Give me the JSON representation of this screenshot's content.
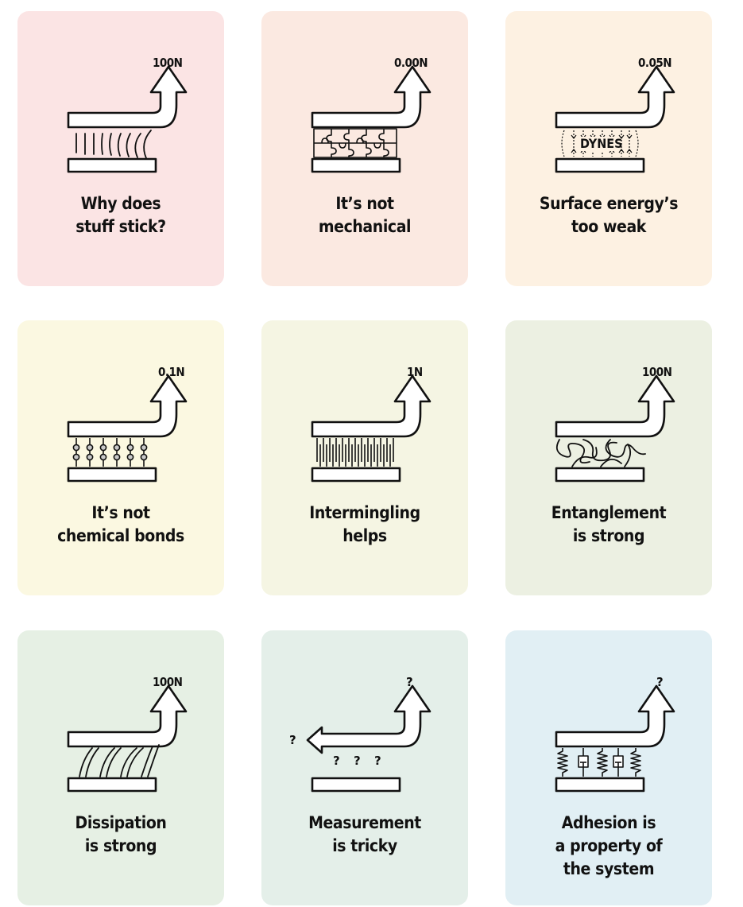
{
  "colors": {
    "card1": "#fbe4e4",
    "card2": "#fbe9e1",
    "card3": "#fdf1e2",
    "card4": "#fbf8e1",
    "card5": "#f5f5e3",
    "card6": "#ecf0e2",
    "card7": "#e6f0e4",
    "card8": "#e4efe9",
    "card9": "#e1eff4",
    "ink": "#111111"
  },
  "cards": [
    {
      "force": "100N",
      "caption": [
        "Why does",
        "stuff stick?"
      ]
    },
    {
      "force": "0.00N",
      "caption": [
        "It’s not",
        "mechanical"
      ]
    },
    {
      "force": "0.05N",
      "caption": [
        "Surface energy’s",
        "too weak"
      ],
      "inner_label": "DYNES"
    },
    {
      "force": "0.1N",
      "caption": [
        "It’s not",
        "chemical bonds"
      ]
    },
    {
      "force": "1N",
      "caption": [
        "Intermingling",
        "helps"
      ]
    },
    {
      "force": "100N",
      "caption": [
        "Entanglement",
        "is strong"
      ]
    },
    {
      "force": "100N",
      "caption": [
        "Dissipation",
        "is strong"
      ]
    },
    {
      "force": "?",
      "caption": [
        "Measurement",
        "is tricky"
      ],
      "extra_marks": [
        "?",
        "?",
        "?",
        "?"
      ]
    },
    {
      "force": "?",
      "caption": [
        "Adhesion is",
        "a property of",
        "the system"
      ]
    }
  ]
}
